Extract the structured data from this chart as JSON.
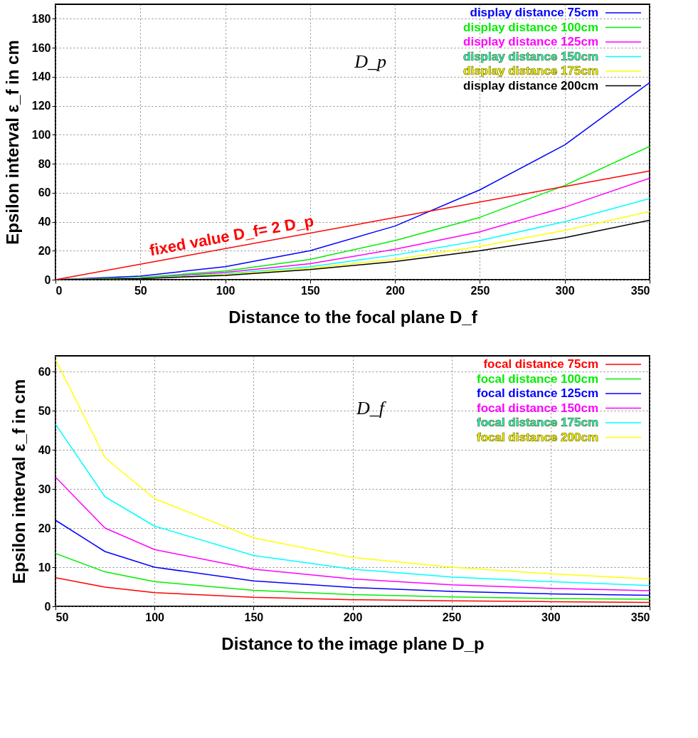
{
  "chart_data": [
    {
      "type": "line",
      "xlabel": "Distance to the focal plane  D_f",
      "ylabel": "Epsilon interval  ε_f in cm",
      "xlim": [
        0,
        350
      ],
      "ylim": [
        0,
        190
      ],
      "xticks": [
        0,
        50,
        100,
        150,
        200,
        250,
        300,
        350
      ],
      "yticks": [
        0,
        20,
        40,
        60,
        80,
        100,
        120,
        140,
        160,
        180
      ],
      "grid": true,
      "legend": "top right",
      "x": [
        0,
        50,
        100,
        150,
        200,
        250,
        300,
        350
      ],
      "series": [
        {
          "name": "display distance 75cm",
          "color": "#0000ff",
          "values": [
            0,
            2.5,
            9,
            20,
            37,
            62,
            93,
            136
          ]
        },
        {
          "name": "display distance 100cm",
          "color": "#00ee00",
          "values": [
            0,
            1.5,
            6,
            14,
            27,
            43,
            65,
            92
          ]
        },
        {
          "name": "display distance 125cm",
          "color": "#ff00ff",
          "values": [
            0,
            1,
            5,
            11,
            21,
            33,
            50,
            70
          ]
        },
        {
          "name": "display distance 150cm",
          "color": "#00ffff",
          "values": [
            0,
            1,
            4,
            9,
            17,
            27,
            40,
            56
          ]
        },
        {
          "name": "display distance 175cm",
          "color": "#ffff00",
          "values": [
            0,
            0.8,
            3.5,
            8,
            14,
            23,
            34,
            47
          ]
        },
        {
          "name": "display distance 200cm",
          "color": "#000000",
          "values": [
            0,
            0.7,
            3,
            7,
            12.5,
            20,
            29,
            41
          ]
        },
        {
          "name": "fixed value  D_f= 2 D_p",
          "color": "#ff0000",
          "x": [
            0,
            350
          ],
          "values": [
            0,
            75
          ]
        }
      ],
      "annotations": [
        "D_p"
      ]
    },
    {
      "type": "line",
      "xlabel": "Distance to the image plane  D_p",
      "ylabel": "Epsilon interval  ε_f in cm",
      "xlim": [
        50,
        350
      ],
      "ylim": [
        0,
        64
      ],
      "xticks": [
        50,
        100,
        150,
        200,
        250,
        300,
        350
      ],
      "yticks": [
        0,
        10,
        20,
        30,
        40,
        50,
        60
      ],
      "grid": true,
      "legend": "top right",
      "x": [
        50,
        75,
        100,
        150,
        200,
        250,
        300,
        350
      ],
      "series": [
        {
          "name": "focal distance 75cm",
          "color": "#ff0000",
          "values": [
            7.3,
            4.9,
            3.5,
            2.3,
            1.7,
            1.4,
            1.2,
            1
          ]
        },
        {
          "name": "focal distance 100cm",
          "color": "#00ee00",
          "values": [
            13.5,
            8.8,
            6.3,
            4.1,
            3,
            2.4,
            2,
            1.8
          ]
        },
        {
          "name": "focal distance 125cm",
          "color": "#0000ff",
          "values": [
            22,
            14,
            10,
            6.5,
            4.8,
            3.8,
            3.2,
            2.8
          ]
        },
        {
          "name": "focal distance 150cm",
          "color": "#ff00ff",
          "values": [
            33,
            20,
            14.5,
            9.5,
            7,
            5.5,
            4.6,
            4
          ]
        },
        {
          "name": "focal distance 175cm",
          "color": "#00ffff",
          "values": [
            46.5,
            28,
            20.5,
            13,
            9.5,
            7.5,
            6.3,
            5.3
          ]
        },
        {
          "name": "focal distance 200cm",
          "color": "#ffff00",
          "values": [
            63,
            38,
            27.5,
            17.5,
            12.5,
            10,
            8.3,
            7
          ]
        }
      ],
      "annotations": [
        "D_f"
      ]
    }
  ]
}
